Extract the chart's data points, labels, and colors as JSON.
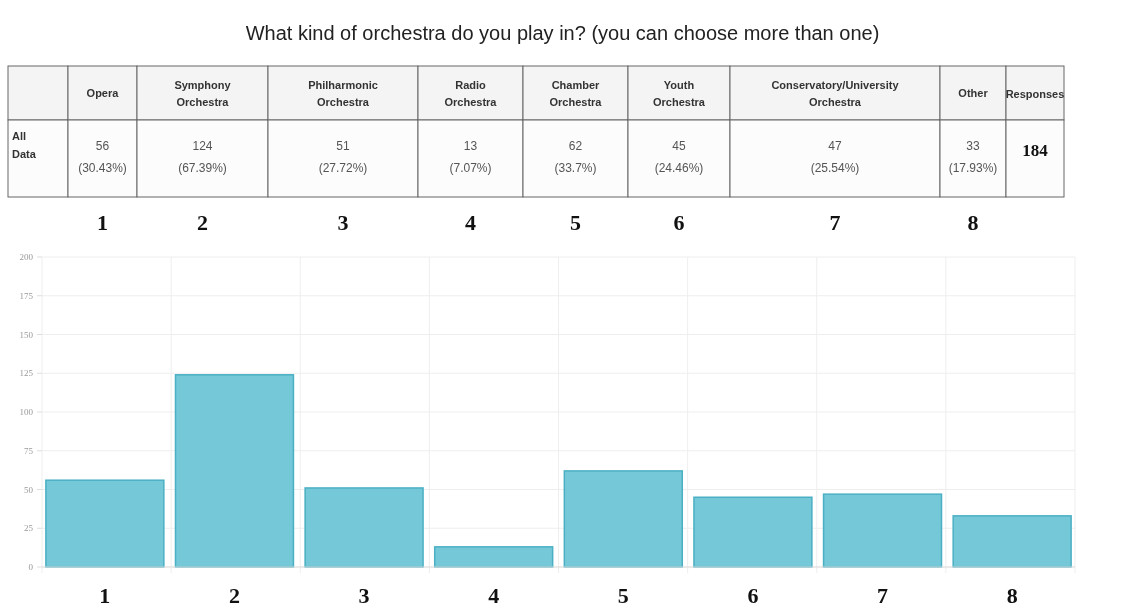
{
  "chart_data": {
    "type": "bar",
    "title": "What kind of orchestra do you play in? (you can choose more than one)",
    "categories": [
      "1",
      "2",
      "3",
      "4",
      "5",
      "6",
      "7",
      "8"
    ],
    "values": [
      56,
      124,
      51,
      13,
      62,
      45,
      47,
      33
    ],
    "value_labels": [
      "56 (30.43%)",
      "124 (67.39%)",
      "51 (27.72%)",
      "13 (7.07%)",
      "62 (33.7%)",
      "45 (24.46%)",
      "47 (25.54%)",
      "33 (17.93%)"
    ],
    "color": "#74c8d8",
    "ylim": [
      0,
      200
    ],
    "yticks": [
      0,
      25,
      50,
      75,
      100,
      125,
      150,
      175,
      200
    ],
    "grid": true,
    "annotations": [
      "All Data",
      "Opera",
      "Symphony Orchestra",
      "Philharmonic Orchestra",
      "Radio Orchestra",
      "Chamber Orchestra",
      "Youth Orchestra",
      "Conservatory/University Orchestra",
      "Other",
      "Responses",
      "184"
    ]
  }
}
